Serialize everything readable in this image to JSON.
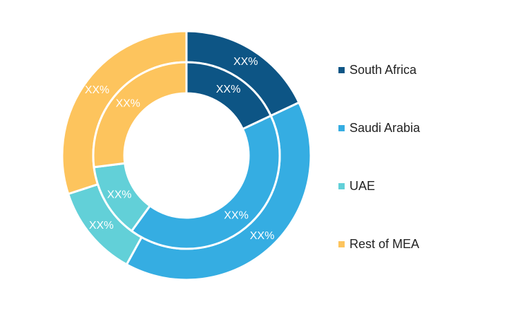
{
  "chart_data": {
    "type": "pie",
    "title": "",
    "legend_position": "right",
    "categories": [
      "South Africa",
      "Saudi Arabia",
      "UAE",
      "Rest of MEA"
    ],
    "colors": [
      "#0d5585",
      "#35ade2",
      "#62d0d8",
      "#fdc45d"
    ],
    "series": [
      {
        "ring": "outer",
        "values": [
          18,
          40,
          12,
          30
        ],
        "labels": [
          "XX%",
          "XX%",
          "XX%",
          "XX%"
        ]
      },
      {
        "ring": "inner",
        "values": [
          18,
          42,
          13,
          27
        ],
        "labels": [
          "XX%",
          "XX%",
          "XX%",
          "XX%"
        ]
      }
    ]
  }
}
